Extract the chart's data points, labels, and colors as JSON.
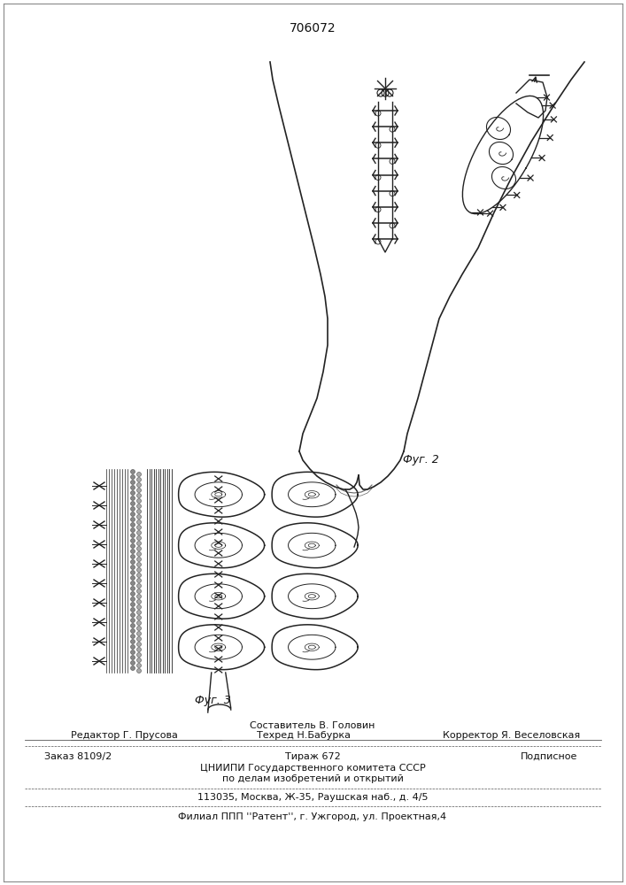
{
  "patent_number": "706072",
  "fig2_label": "Фуг. 2",
  "fig3_label": "Фуг. 3",
  "footer_line1": "Составитель В. Головин",
  "footer_line2_left": "Редактор Г. Прусова",
  "footer_line2_mid": "Техред Н.Бабурка",
  "footer_line2_right": "Корректор Я. Веселовская",
  "footer_line3_left": "Заказ 8109/2",
  "footer_line3_mid": "Тираж 672",
  "footer_line3_right": "Подписное",
  "footer_line4": "ЦНИИПИ Государственного комитета СССР",
  "footer_line5": "по делам изобретений и открытий",
  "footer_line6": "113035, Москва, Ж-35, Раушская наб., д. 4/5",
  "footer_line7": "Филиал ППП ''Pатент'', г. Ужгород, ул. Проектная,4",
  "bg_color": "#ffffff",
  "text_color": "#111111",
  "line_color": "#222222"
}
